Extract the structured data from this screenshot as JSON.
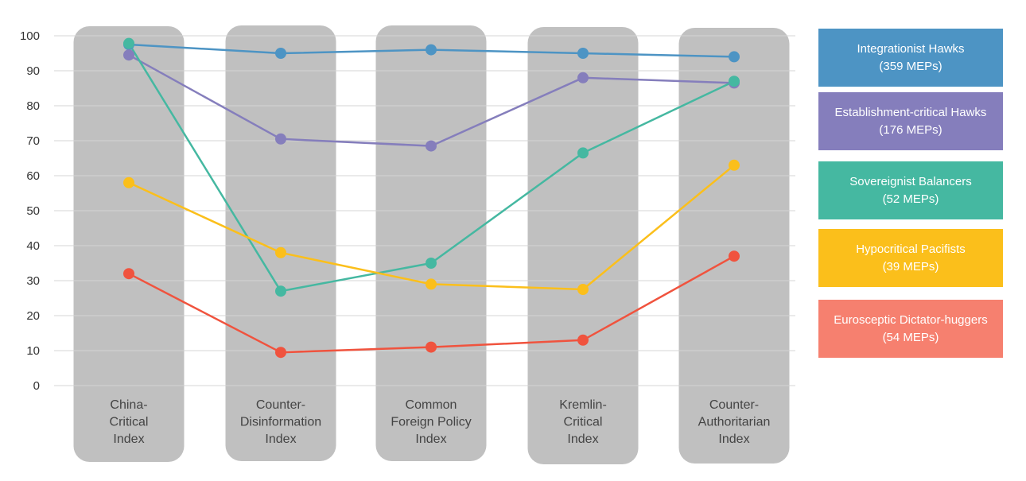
{
  "chart_data": {
    "type": "line",
    "categories": [
      [
        "China-",
        "Critical",
        "Index"
      ],
      [
        "Counter-",
        "Disinformation",
        "Index"
      ],
      [
        "Common",
        "Foreign Policy",
        "Index"
      ],
      [
        "Kremlin-",
        "Critical",
        "Index"
      ],
      [
        "Counter-",
        "Authoritarian",
        "Index"
      ]
    ],
    "yticks": [
      "0",
      "10",
      "20",
      "30",
      "40",
      "50",
      "60",
      "70",
      "80",
      "90",
      "100"
    ],
    "ylim": [
      0,
      100
    ],
    "grid": true,
    "legend_position": "right",
    "series": [
      {
        "name": "Integrationist Hawks",
        "sub": "(359 MEPs)",
        "color": "#4d94c4",
        "values": [
          97.5,
          95,
          96,
          95,
          94
        ]
      },
      {
        "name": "Establishment-critical Hawks",
        "sub": "(176 MEPs)",
        "color": "#857ebc",
        "values": [
          94.5,
          70.5,
          68.5,
          88,
          86.5
        ]
      },
      {
        "name": "Sovereignist Balancers",
        "sub": "(52 MEPs)",
        "color": "#45b8a1",
        "values": [
          97.8,
          27,
          35,
          66.5,
          87
        ]
      },
      {
        "name": "Hypocritical Pacifists",
        "sub": "(39 MEPs)",
        "color": "#fbbf1b",
        "values": [
          58,
          38,
          29,
          27.5,
          63
        ]
      },
      {
        "name": "Eurosceptic Dictator-huggers",
        "sub": "(54 MEPs)",
        "color": "#f0533e",
        "legend_color": "#f6806f",
        "values": [
          32,
          9.5,
          11,
          13,
          37
        ]
      }
    ]
  }
}
